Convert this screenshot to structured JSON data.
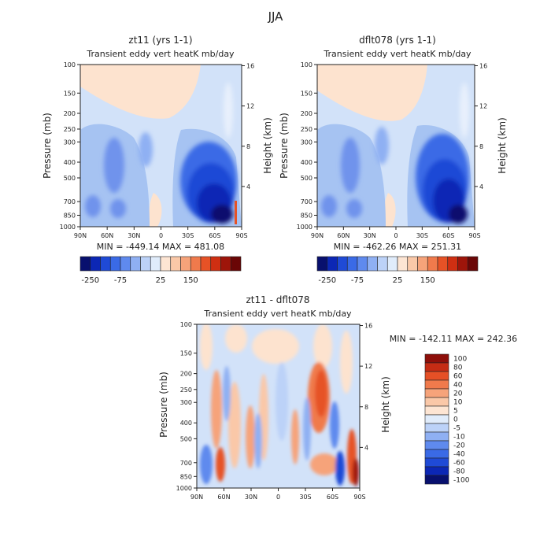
{
  "figure_title": "JJA",
  "panels": [
    {
      "title": "zt11 (yrs 1-1)",
      "subtitle": "Transient eddy vert heatK mb/day",
      "ylabel": "Pressure (mb)",
      "y2label": "Height (km)",
      "stats": "MIN = -449.14   MAX = 481.08"
    },
    {
      "title": "dflt078 (yrs 1-1)",
      "subtitle": "Transient eddy vert heatK mb/day",
      "ylabel": "Pressure (mb)",
      "y2label": "Height (km)",
      "stats": "MIN = -462.26   MAX = 251.31"
    },
    {
      "title": "zt11 - dflt078",
      "subtitle": "Transient eddy vert heatK mb/day",
      "ylabel": "Pressure (mb)",
      "y2label": "Height (km)",
      "stats": "MIN = -142.11   MAX = 242.36"
    }
  ],
  "chart_data": [
    {
      "type": "heatmap",
      "title": "zt11 (yrs 1-1)",
      "subtitle": "Transient eddy vert heatK mb/day",
      "xlabel": "",
      "ylabel": "Pressure (mb)",
      "y2label": "Height (km)",
      "x_ticks": [
        "90N",
        "60N",
        "30N",
        "0",
        "30S",
        "60S",
        "90S"
      ],
      "y_ticks": [
        100,
        150,
        200,
        250,
        300,
        400,
        500,
        700,
        850,
        1000
      ],
      "y2_ticks": [
        4,
        8,
        12,
        16
      ],
      "y_scale": "log",
      "ylim": [
        1000,
        100
      ],
      "min": -449.14,
      "max": 481.08,
      "colorbar_labels": [
        "-250",
        "-75",
        "25",
        "150"
      ]
    },
    {
      "type": "heatmap",
      "title": "dflt078 (yrs 1-1)",
      "subtitle": "Transient eddy vert heatK mb/day",
      "xlabel": "",
      "ylabel": "Pressure (mb)",
      "y2label": "Height (km)",
      "x_ticks": [
        "90N",
        "60N",
        "30N",
        "0",
        "30S",
        "60S",
        "90S"
      ],
      "y_ticks": [
        100,
        150,
        200,
        250,
        300,
        400,
        500,
        700,
        850,
        1000
      ],
      "y2_ticks": [
        4,
        8,
        12,
        16
      ],
      "y_scale": "log",
      "ylim": [
        1000,
        100
      ],
      "min": -462.26,
      "max": 251.31,
      "colorbar_labels": [
        "-250",
        "-75",
        "25",
        "150"
      ]
    },
    {
      "type": "heatmap",
      "title": "zt11 - dflt078",
      "subtitle": "Transient eddy vert heatK mb/day",
      "xlabel": "",
      "ylabel": "Pressure (mb)",
      "y2label": "Height (km)",
      "x_ticks": [
        "90N",
        "60N",
        "30N",
        "0",
        "30S",
        "60S",
        "90S"
      ],
      "y_ticks": [
        100,
        150,
        200,
        250,
        300,
        400,
        500,
        700,
        850,
        1000
      ],
      "y2_ticks": [
        4,
        8,
        12,
        16
      ],
      "y_scale": "log",
      "ylim": [
        1000,
        100
      ],
      "min": -142.11,
      "max": 242.36,
      "colorbar_labels": [
        "100",
        "80",
        "60",
        "40",
        "20",
        "10",
        "5",
        "0",
        "-5",
        "-10",
        "-20",
        "-40",
        "-60",
        "-80",
        "-100"
      ]
    }
  ],
  "colorbars": {
    "top_colors": [
      "#08106e",
      "#0c27b5",
      "#1f4ad6",
      "#3a6ae6",
      "#5f8aee",
      "#8fb0f3",
      "#bcd2f8",
      "#e0ecfb",
      "#fde5d3",
      "#fac8a8",
      "#f6a37a",
      "#f07a4c",
      "#e65226",
      "#cf2f12",
      "#9e150a",
      "#6a0606"
    ],
    "diff_colors": [
      "#8e0f0a",
      "#c52c14",
      "#e55026",
      "#f07a4c",
      "#f6a37a",
      "#fac8a8",
      "#fde5d3",
      "#e0ecfb",
      "#bcd2f8",
      "#8fb0f3",
      "#5f8aee",
      "#3a6ae6",
      "#1f4ad6",
      "#0c27b5",
      "#08106e"
    ]
  },
  "colors": {
    "light_blue": "#d2e2f9",
    "light_peach": "#fde3cf",
    "axis": "#222222"
  }
}
